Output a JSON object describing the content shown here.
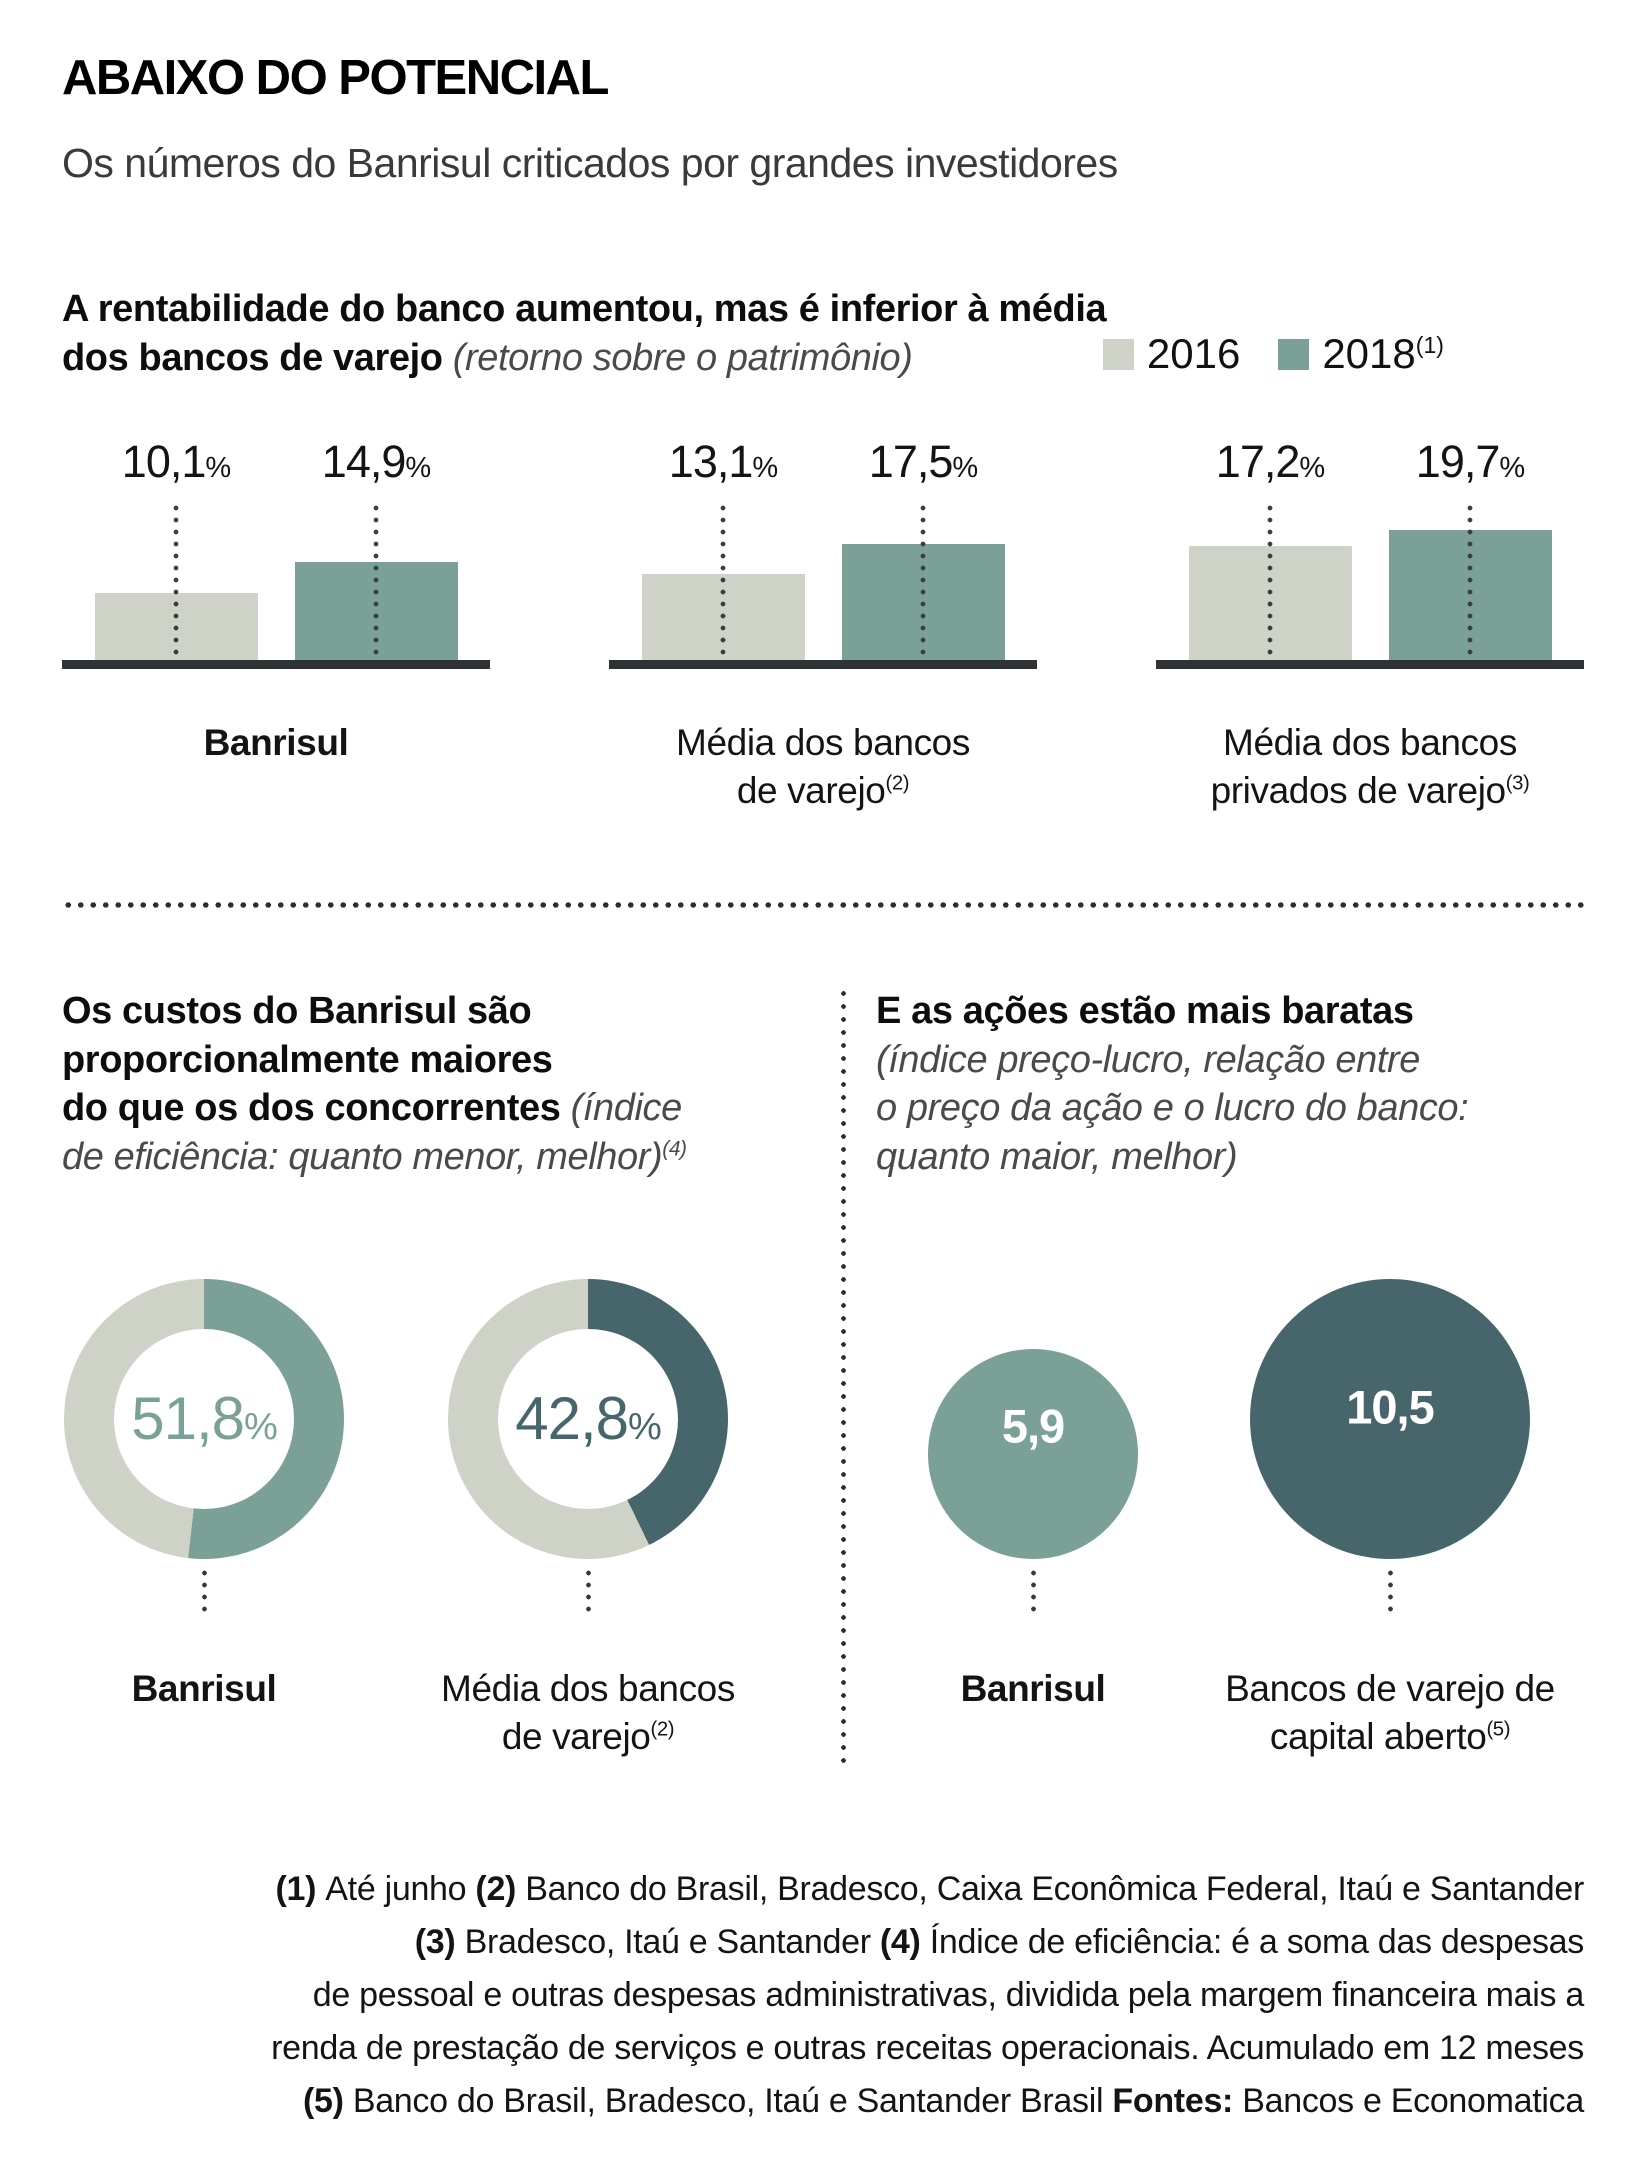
{
  "page": {
    "title": "ABAIXO DO POTENCIAL",
    "subtitle": "Os números do Banrisul criticados por grandes investidores"
  },
  "roe": {
    "heading_lines": [
      [
        {
          "text": "A rentabilidade do banco aumentou, mas é inferior à média",
          "style": "b"
        }
      ],
      [
        {
          "text": "dos bancos de varejo ",
          "style": "b"
        },
        {
          "text": "(retorno sobre o patrimônio)",
          "style": "i"
        }
      ]
    ],
    "unit": "%",
    "legend": [
      {
        "label": "2016",
        "sup": "",
        "color": "#cfd3c7"
      },
      {
        "label": "2018",
        "sup": "(1)",
        "color": "#7aa098"
      }
    ],
    "groups": [
      {
        "label_lines": [
          "Banrisul"
        ],
        "sup": "",
        "bold": true,
        "values": [
          "10,1",
          "14,9"
        ]
      },
      {
        "label_lines": [
          "Média dos bancos",
          "de varejo"
        ],
        "sup": "(2)",
        "bold": false,
        "values": [
          "13,1",
          "17,5"
        ]
      },
      {
        "label_lines": [
          "Média dos bancos",
          "privados de varejo"
        ],
        "sup": "(3)",
        "bold": false,
        "values": [
          "17,2",
          "19,7"
        ]
      }
    ]
  },
  "efficiency": {
    "heading_lines": [
      [
        {
          "text": "Os custos do Banrisul são",
          "style": "b"
        }
      ],
      [
        {
          "text": "proporcionalmente maiores",
          "style": "b"
        }
      ],
      [
        {
          "text": "do que os dos concorrentes ",
          "style": "b"
        },
        {
          "text": "(índice",
          "style": "i"
        }
      ],
      [
        {
          "text": "de eficiência: quanto menor, melhor)",
          "style": "i"
        },
        {
          "text": "(4)",
          "style": "is"
        }
      ]
    ],
    "unit": "%",
    "donuts": [
      {
        "label_lines": [
          "Banrisul"
        ],
        "sup": "",
        "bold": true,
        "value": "51,8"
      },
      {
        "label_lines": [
          "Média dos bancos",
          "de varejo"
        ],
        "sup": "(2)",
        "bold": false,
        "value": "42,8"
      }
    ]
  },
  "pe": {
    "heading_lines": [
      [
        {
          "text": "E as ações estão mais baratas",
          "style": "b"
        }
      ],
      [
        {
          "text": "(índice preço-lucro, relação entre",
          "style": "i"
        }
      ],
      [
        {
          "text": "o preço da ação e o lucro do banco:",
          "style": "i"
        }
      ],
      [
        {
          "text": "quanto maior, melhor)",
          "style": "i"
        }
      ]
    ],
    "circles": [
      {
        "label_lines": [
          "Banrisul"
        ],
        "sup": "",
        "bold": true,
        "value": "5,9"
      },
      {
        "label_lines": [
          "Bancos de varejo de",
          "capital aberto"
        ],
        "sup": "(5)",
        "bold": false,
        "value": "10,5"
      }
    ]
  },
  "footnotes": {
    "lines": [
      {
        "parts": [
          {
            "text": "(1) ",
            "bold": true
          },
          {
            "text": "Até junho ",
            "bold": false
          },
          {
            "text": "(2) ",
            "bold": true
          },
          {
            "text": "Banco do Brasil, Bradesco, Caixa Econômica Federal, Itaú e Santander",
            "bold": false
          }
        ]
      },
      {
        "parts": [
          {
            "text": "(3) ",
            "bold": true
          },
          {
            "text": "Bradesco, Itaú e Santander ",
            "bold": false
          },
          {
            "text": "(4) ",
            "bold": true
          },
          {
            "text": "Índice de eficiência: é a soma das despesas",
            "bold": false
          }
        ]
      },
      {
        "parts": [
          {
            "text": "de pessoal e outras despesas administrativas, dividida pela margem financeira mais a",
            "bold": false
          }
        ]
      },
      {
        "parts": [
          {
            "text": "renda de prestação de serviços e outras receitas operacionais. Acumulado em 12 meses",
            "bold": false
          }
        ]
      },
      {
        "parts": [
          {
            "text": "(5) ",
            "bold": true
          },
          {
            "text": "Banco do Brasil, Bradesco, Itaú e Santander Brasil ",
            "bold": false
          },
          {
            "text": "Fontes: ",
            "bold": true
          },
          {
            "text": "Bancos e Economatica",
            "bold": false
          }
        ]
      }
    ]
  },
  "chart_data": [
    {
      "type": "bar",
      "title": "A rentabilidade do banco aumentou, mas é inferior à média dos bancos de varejo (retorno sobre o patrimônio)",
      "categories": [
        "Banrisul",
        "Média dos bancos de varejo (2)",
        "Média dos bancos privados de varejo (3)"
      ],
      "series": [
        {
          "name": "2016",
          "values": [
            10.1,
            13.1,
            17.2
          ],
          "color": "#cfd3c7"
        },
        {
          "name": "2018 (1)",
          "values": [
            14.9,
            17.5,
            19.7
          ],
          "color": "#7aa098"
        }
      ],
      "unit": "%",
      "ylim": [
        0,
        24
      ],
      "grid": false,
      "value_labels": true,
      "legend_position": "top-right"
    },
    {
      "type": "pie",
      "style": "donut",
      "title": "Os custos do Banrisul são proporcionalmente maiores do que os dos concorrentes (índice de eficiência: quanto menor, melhor) (4)",
      "unit": "%",
      "donuts": [
        {
          "label": "Banrisul",
          "value": 51.8,
          "color": "#7aa098",
          "rest_color": "#cfd3c7"
        },
        {
          "label": "Média dos bancos de varejo (2)",
          "value": 42.8,
          "color": "#47666b",
          "rest_color": "#cfd3c7"
        }
      ]
    },
    {
      "type": "bar",
      "style": "proportional-area-circles",
      "title": "E as ações estão mais baratas (índice preço-lucro, relação entre o preço da ação e o lucro do banco: quanto maior, melhor)",
      "categories": [
        "Banrisul",
        "Bancos de varejo de capital aberto (5)"
      ],
      "values": [
        5.9,
        10.5
      ],
      "colors": [
        "#7aa098",
        "#47666b"
      ]
    }
  ]
}
